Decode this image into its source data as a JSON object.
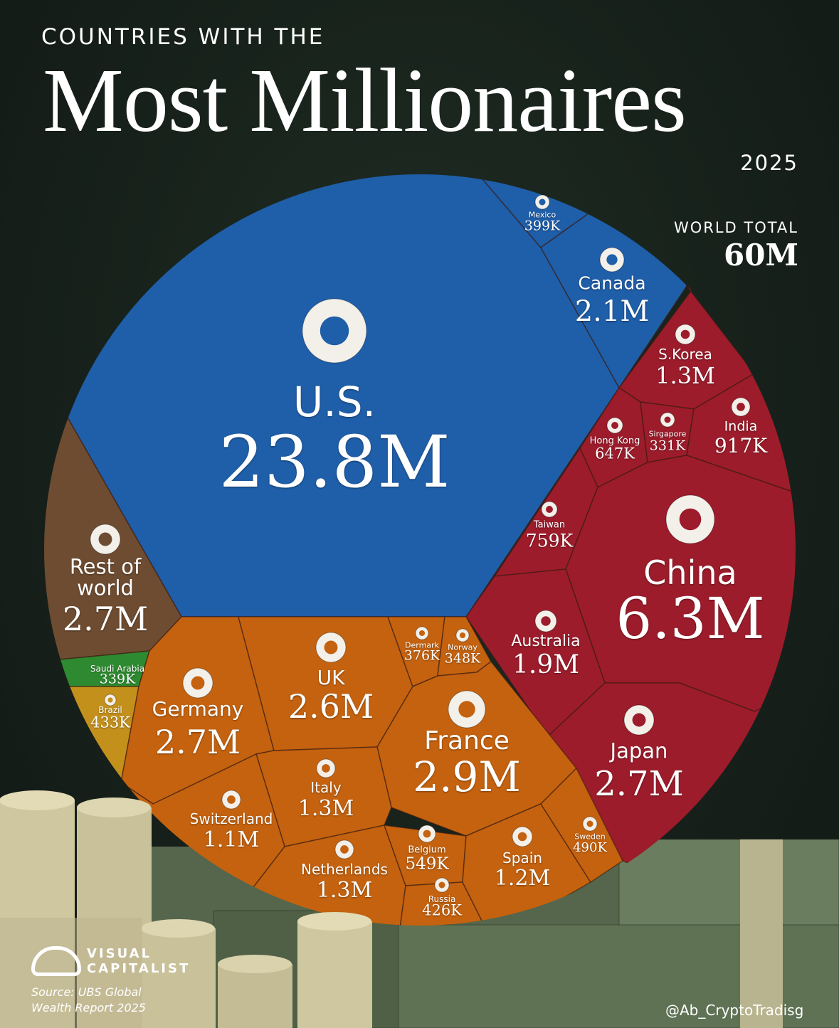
{
  "chart_data": {
    "type": "voronoi",
    "kicker": "COUNTRIES WITH THE",
    "title": "Most Millionaires",
    "subtitle": "2025",
    "total_label": "WORLD TOTAL",
    "total_value": 60000000,
    "total_value_label": "60M",
    "categories": [
      "U.S.",
      "Mexico",
      "Canada",
      "S.Korea",
      "Hong Kong",
      "Sirgapore",
      "India",
      "Taiwan",
      "China",
      "Australia",
      "Japan",
      "Rest of world",
      "Saudi Arabia",
      "Brazil",
      "Germany",
      "UK",
      "Dermark",
      "Norway",
      "France",
      "Italy",
      "Switzerland",
      "Netherlands",
      "Belgium",
      "Russia",
      "Spain",
      "Sweden"
    ],
    "values": [
      23800000,
      399000,
      2100000,
      1300000,
      647000,
      331000,
      917000,
      759000,
      6300000,
      1900000,
      2700000,
      2700000,
      339000,
      433000,
      2700000,
      2600000,
      376000,
      348000,
      2900000,
      1300000,
      1100000,
      1300000,
      549000,
      426000,
      1200000,
      490000
    ],
    "value_labels": [
      "23.8M",
      "399K",
      "2.1M",
      "1.3M",
      "647K",
      "331K",
      "917K",
      "759K",
      "6.3M",
      "1.9M",
      "2.7M",
      "2.7M",
      "339K",
      "433K",
      "2.7M",
      "2.6M",
      "376K",
      "348K",
      "2.9M",
      "1.3M",
      "1.1M",
      "1.3M",
      "549K",
      "426K",
      "1.2M",
      "490K"
    ],
    "colors": [
      "#1f5ea8",
      "#1f5ea8",
      "#1f5ea8",
      "#9c1c2b",
      "#9c1c2b",
      "#9c1c2b",
      "#9c1c2b",
      "#9c1c2b",
      "#9c1c2b",
      "#9c1c2b",
      "#9c1c2b",
      "#6e4c31",
      "#2e8a30",
      "#c4901c",
      "#c4620f",
      "#c4620f",
      "#c4620f",
      "#c4620f",
      "#c4620f",
      "#c4620f",
      "#c4620f",
      "#c4620f",
      "#c4620f",
      "#c4620f",
      "#c4620f",
      "#c4620f"
    ],
    "brand": "VISUAL CAPITALIST",
    "source": "Source: UBS Global Wealth Report 2025",
    "watermark": "@Ab_CryptoTradisg"
  }
}
